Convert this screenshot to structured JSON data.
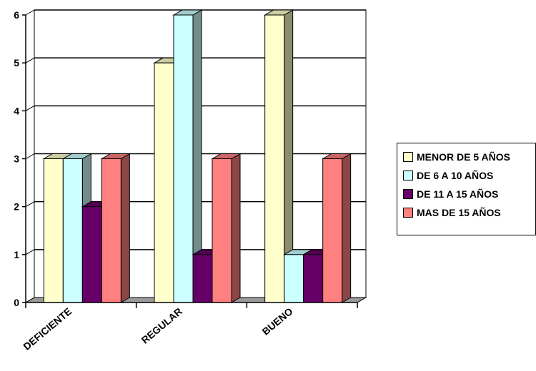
{
  "chart_data": {
    "type": "bar",
    "categories": [
      "DEFICIENTE",
      "REGULAR",
      "BUENO"
    ],
    "series": [
      {
        "name": "MENOR DE 5 AÑOS",
        "values": [
          3,
          5,
          6
        ],
        "color": "#FFFFCC"
      },
      {
        "name": "DE 6 A 10 AÑOS",
        "values": [
          3,
          6,
          1
        ],
        "color": "#CCFFFF"
      },
      {
        "name": "DE 11 A 15 AÑOS",
        "values": [
          2,
          1,
          1
        ],
        "color": "#660066"
      },
      {
        "name": "MAS DE 15 AÑOS",
        "values": [
          3,
          3,
          3
        ],
        "color": "#FF8080"
      }
    ],
    "yticks": [
      "0",
      "1",
      "2",
      "3",
      "4",
      "5",
      "6"
    ],
    "ylim": [
      0,
      6
    ],
    "grid": true,
    "legend_position": "right",
    "style": "3d-clustered-column"
  }
}
